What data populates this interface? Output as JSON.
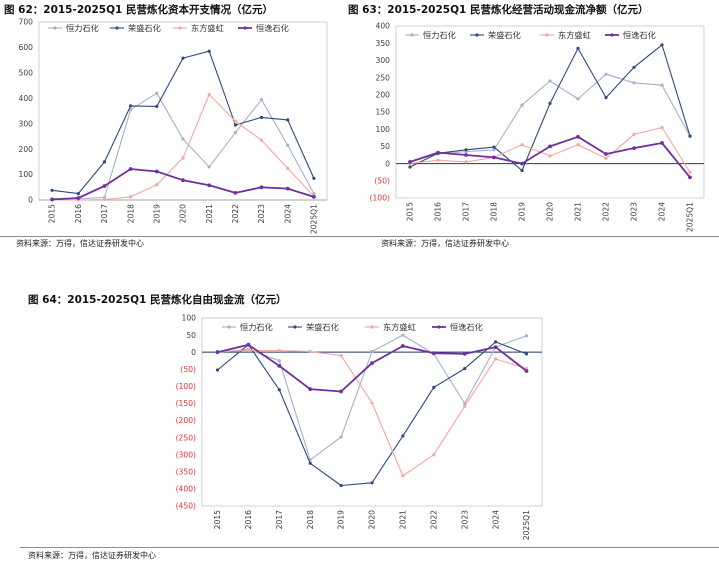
{
  "sources": [
    "资料来源：万得，信达证券研发中心",
    "资料来源：万得，信达证券研发中心",
    "资料来源：万得，信达证券研发中心"
  ],
  "chart_data": [
    {
      "type": "line",
      "title": "图 62：2015-2025Q1 民营炼化资本开支情况（亿元）",
      "categories": [
        "2015",
        "2016",
        "2017",
        "2018",
        "2019",
        "2020",
        "2021",
        "2022",
        "2023",
        "2024",
        "2025Q1"
      ],
      "ylim": [
        0,
        700
      ],
      "yticks": [
        0,
        100,
        200,
        300,
        400,
        500,
        600,
        700
      ],
      "ytick_labels": [
        "0",
        "100",
        "200",
        "300",
        "400",
        "500",
        "600",
        "700"
      ],
      "zero_line_color": "#a6a6a6",
      "negative_label_color": "#e8322f",
      "legend": "top",
      "grid": false,
      "series": [
        {
          "name": "恒力石化",
          "color": "#a7b0cc",
          "values": [
            5,
            5,
            10,
            355,
            420,
            240,
            130,
            265,
            395,
            215,
            25
          ]
        },
        {
          "name": "荣盛石化",
          "color": "#2e4a7d",
          "values": [
            38,
            25,
            150,
            370,
            368,
            558,
            585,
            295,
            325,
            315,
            85
          ]
        },
        {
          "name": "东方盛虹",
          "color": "#f4a6a3",
          "values": [
            0,
            0,
            2,
            12,
            60,
            165,
            415,
            310,
            235,
            125,
            15
          ]
        },
        {
          "name": "恒逸石化",
          "color": "#7030a0",
          "values": [
            2,
            8,
            55,
            122,
            112,
            78,
            58,
            28,
            50,
            45,
            12
          ]
        }
      ]
    },
    {
      "type": "line",
      "title": "图 63：2015-2025Q1 民营炼化经营活动现金流净额（亿元）",
      "categories": [
        "2015",
        "2016",
        "2017",
        "2018",
        "2019",
        "2020",
        "2021",
        "2022",
        "2023",
        "2024",
        "2025Q1"
      ],
      "ylim": [
        -100,
        400
      ],
      "yticks": [
        400,
        350,
        300,
        250,
        200,
        150,
        100,
        50,
        0,
        -50,
        -100
      ],
      "ytick_labels": [
        "400",
        "350",
        "300",
        "250",
        "200",
        "150",
        "100",
        "50",
        "0",
        "(50)",
        "(100)"
      ],
      "zero_line_color": "#1f3864",
      "negative_label_color": "#e8322f",
      "legend": "top",
      "grid": false,
      "series": [
        {
          "name": "恒力石化",
          "color": "#a7b0cc",
          "values": [
            5,
            28,
            35,
            40,
            170,
            240,
            188,
            260,
            235,
            228,
            80
          ]
        },
        {
          "name": "荣盛石化",
          "color": "#2e4a7d",
          "values": [
            -10,
            30,
            40,
            48,
            -20,
            175,
            335,
            192,
            280,
            345,
            80
          ]
        },
        {
          "name": "东方盛虹",
          "color": "#f4a6a3",
          "values": [
            0,
            10,
            5,
            18,
            55,
            22,
            55,
            15,
            85,
            105,
            -25
          ]
        },
        {
          "name": "恒逸石化",
          "color": "#7030a0",
          "values": [
            5,
            32,
            25,
            18,
            0,
            50,
            78,
            28,
            45,
            60,
            -40
          ]
        }
      ]
    },
    {
      "type": "line",
      "title": "图 64：2015-2025Q1 民营炼化自由现金流（亿元）",
      "categories": [
        "2015",
        "2016",
        "2017",
        "2018",
        "2019",
        "2020",
        "2021",
        "2022",
        "2023",
        "2024",
        "2025Q1"
      ],
      "ylim": [
        -450,
        100
      ],
      "yticks": [
        100,
        50,
        0,
        -50,
        -100,
        -150,
        -200,
        -250,
        -300,
        -350,
        -400,
        -450
      ],
      "ytick_labels": [
        "100",
        "50",
        "0",
        "(50)",
        "(100)",
        "(150)",
        "(200)",
        "(250)",
        "(300)",
        "(350)",
        "(400)",
        "(450)"
      ],
      "zero_line_color": "#1f3864",
      "negative_label_color": "#e8322f",
      "legend": "top",
      "grid": false,
      "series": [
        {
          "name": "恒力石化",
          "color": "#a7b0cc",
          "values": [
            0,
            8,
            -25,
            -315,
            -248,
            2,
            50,
            -5,
            -150,
            15,
            48
          ]
        },
        {
          "name": "荣盛石化",
          "color": "#2e4a7d",
          "values": [
            -52,
            22,
            -110,
            -325,
            -390,
            -382,
            -245,
            -103,
            -48,
            30,
            -5
          ]
        },
        {
          "name": "东方盛虹",
          "color": "#f4a6a3",
          "values": [
            2,
            5,
            5,
            2,
            -10,
            -148,
            -362,
            -300,
            -158,
            -20,
            -48
          ]
        },
        {
          "name": "恒逸石化",
          "color": "#7030a0",
          "values": [
            0,
            22,
            -40,
            -108,
            -115,
            -32,
            18,
            -3,
            -5,
            15,
            -55
          ]
        }
      ]
    }
  ]
}
